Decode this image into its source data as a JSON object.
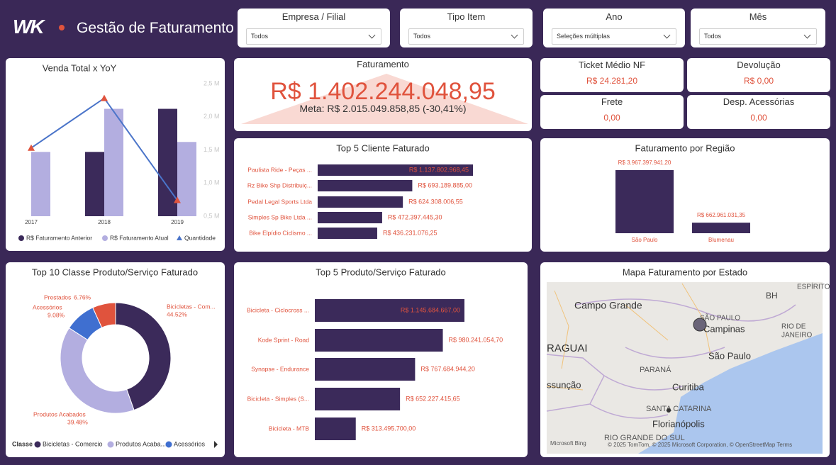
{
  "header": {
    "logo": "WK",
    "title": "Gestão de Faturamento"
  },
  "filters": [
    {
      "label": "Empresa / Filial",
      "value": "Todos"
    },
    {
      "label": "Tipo Item",
      "value": "Todos"
    },
    {
      "label": "Ano",
      "value": "Seleções múltiplas"
    },
    {
      "label": "Mês",
      "value": "Todos"
    }
  ],
  "kpis": {
    "faturamento": {
      "title": "Faturamento",
      "value": "R$ 1.402.244.048,95",
      "meta": "Meta: R$ 2.015.049.858,85 (-30,41%)"
    },
    "cards": [
      {
        "title": "Ticket Médio NF",
        "value": "R$ 24.281,20"
      },
      {
        "title": "Devolução",
        "value": "R$ 0,00"
      },
      {
        "title": "Frete",
        "value": "0,00"
      },
      {
        "title": "Desp. Acessórias",
        "value": "0,00"
      }
    ]
  },
  "chart_data": [
    {
      "type": "combo",
      "title": "Venda Total x YoY",
      "categories": [
        "2017",
        "2018",
        "2019"
      ],
      "series": [
        {
          "name": "R$ Faturamento Anterior",
          "color": "#3b2a5a",
          "type": "bar",
          "values": [
            null,
            1.47,
            2.12
          ]
        },
        {
          "name": "R$ Faturamento Atual",
          "color": "#b3aee0",
          "type": "bar",
          "values": [
            1.47,
            2.12,
            1.62
          ]
        },
        {
          "name": "Quantidade",
          "color": "#4a74c9",
          "marker_color": "#e0533d",
          "type": "line",
          "values": [
            1.53,
            2.28,
            0.74
          ]
        }
      ],
      "ylim": [
        0.5,
        2.5
      ],
      "yticks": [
        {
          "value": 2.5,
          "label": "2,5 M"
        },
        {
          "value": 2.0,
          "label": "2,0 M"
        },
        {
          "value": 1.5,
          "label": "1,5 M"
        },
        {
          "value": 1.0,
          "label": "1,0 M"
        },
        {
          "value": 0.5,
          "label": "0,5 M"
        }
      ]
    },
    {
      "type": "hbar",
      "title": "Top 5 Cliente Faturado",
      "color": "#3b2a5a",
      "categories": [
        "Paulista Ride - Peças ...",
        "Rz Bike Shp Distribuiç...",
        "Pedal Legal Sports Ltda",
        "Simples Sp Bike Ltda ...",
        "Bike Elpídio Ciclismo ..."
      ],
      "values": [
        1137802968.45,
        693189885.0,
        624308006.55,
        472397445.3,
        436231076.25
      ],
      "value_labels": [
        "R$ 1.137.802.968,45",
        "R$ 693.189.885,00",
        "R$ 624.308.006,55",
        "R$ 472.397.445,30",
        "R$ 436.231.076,25"
      ]
    },
    {
      "type": "bar",
      "title": "Faturamento por Região",
      "color": "#3b2a5a",
      "categories": [
        "São Paulo",
        "Blumenau"
      ],
      "values": [
        3967397941.2,
        662961031.35
      ],
      "value_labels": [
        "R$ 3.967.397.941,20",
        "R$ 662.961.031,35"
      ]
    },
    {
      "type": "donut",
      "title": "Top 10 Classe Produto/Serviço Faturado",
      "categories": [
        "Bicicletas - Com...",
        "Produtos Acabados",
        "Acessórios",
        "Prestados"
      ],
      "values": [
        44.52,
        39.48,
        9.08,
        6.76
      ],
      "value_labels": [
        "44.52%",
        "39.48%",
        "9.08%",
        "6.76%"
      ],
      "colors": [
        "#3b2a5a",
        "#b3aee0",
        "#3f6fd0",
        "#e0533d"
      ],
      "legend": {
        "title": "Classe",
        "entries": [
          "Bicicletas - Comercio",
          "Produtos Acaba...",
          "Acessórios"
        ]
      }
    },
    {
      "type": "hbar",
      "title": "Top 5 Produto/Serviço Faturado",
      "color": "#3b2a5a",
      "categories": [
        "Bicicleta - Ciclocross ...",
        "Kode Sprint - Road",
        "Synapse - Endurance",
        "Bicicleta - Simples (S...",
        "Bicicleta - MTB"
      ],
      "values": [
        1145684667.0,
        980241054.7,
        767684944.2,
        652227415.65,
        313495700.0
      ],
      "value_labels": [
        "R$ 1.145.684.667,00",
        "R$ 980.241.054,70",
        "R$ 767.684.944,20",
        "R$ 652.227.415,65",
        "R$ 313.495.700,00"
      ]
    }
  ],
  "map": {
    "title": "Mapa Faturamento por Estado",
    "places": [
      "BH",
      "ESPÍRITO",
      "Campo Grande",
      "SÃO PAULO",
      "Campinas",
      "RIO DE",
      "JANEIRO",
      "RAGUAI",
      "São Paulo",
      "PARANÁ",
      "ssunção",
      "Curitiba",
      "SANTA CATARINA",
      "Florianópolis",
      "RIO GRANDE DO SUL"
    ],
    "provider": "Microsoft Bing",
    "attribution": "© 2025 TomTom, © 2025 Microsoft Corporation, © OpenStreetMap  Terms"
  }
}
